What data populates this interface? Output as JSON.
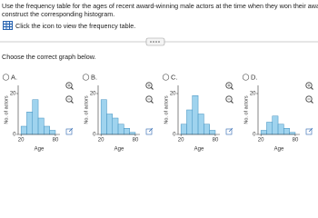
{
  "instructions": [
    "Use the frequency table for the ages of recent award-winning male actors at the time when they won their award to",
    "construct the corresponding histogram."
  ],
  "link": "Click the icon to view the frequency table.",
  "prompt": "Choose the correct graph below.",
  "options": [
    {
      "label": "A.",
      "histogram": {
        "type": "histogram",
        "ylabel": "No. of actors",
        "xlabel": "Age",
        "bins": [
          20,
          30,
          40,
          50,
          60,
          70,
          80
        ],
        "counts": [
          4,
          11,
          17,
          8,
          4,
          2
        ],
        "xlim": [
          15,
          88
        ],
        "ylim": [
          0,
          24
        ],
        "yticks": [
          0,
          20
        ],
        "xticks": [
          20,
          80
        ]
      }
    },
    {
      "label": "B.",
      "histogram": {
        "type": "histogram",
        "ylabel": "No. of actors",
        "xlabel": "Age",
        "bins": [
          20,
          30,
          40,
          50,
          60,
          70,
          80
        ],
        "counts": [
          17,
          10,
          8,
          5,
          3,
          1
        ],
        "xlim": [
          15,
          88
        ],
        "ylim": [
          0,
          24
        ],
        "yticks": [
          0,
          20
        ],
        "xticks": [
          20,
          80
        ]
      }
    },
    {
      "label": "C.",
      "histogram": {
        "type": "histogram",
        "ylabel": "No. of actors",
        "xlabel": "Age",
        "bins": [
          20,
          30,
          40,
          50,
          60,
          70,
          80
        ],
        "counts": [
          5,
          12,
          19,
          10,
          5,
          2
        ],
        "xlim": [
          15,
          88
        ],
        "ylim": [
          0,
          24
        ],
        "yticks": [
          0,
          20
        ],
        "xticks": [
          20,
          80
        ]
      }
    },
    {
      "label": "D.",
      "histogram": {
        "type": "histogram",
        "ylabel": "No. of actors",
        "xlabel": "Age",
        "bins": [
          20,
          30,
          40,
          50,
          60,
          70,
          80
        ],
        "counts": [
          2,
          6,
          9,
          5,
          3,
          1
        ],
        "xlim": [
          15,
          88
        ],
        "ylim": [
          0,
          24
        ],
        "yticks": [
          0,
          20
        ],
        "xticks": [
          20,
          80
        ]
      }
    }
  ]
}
